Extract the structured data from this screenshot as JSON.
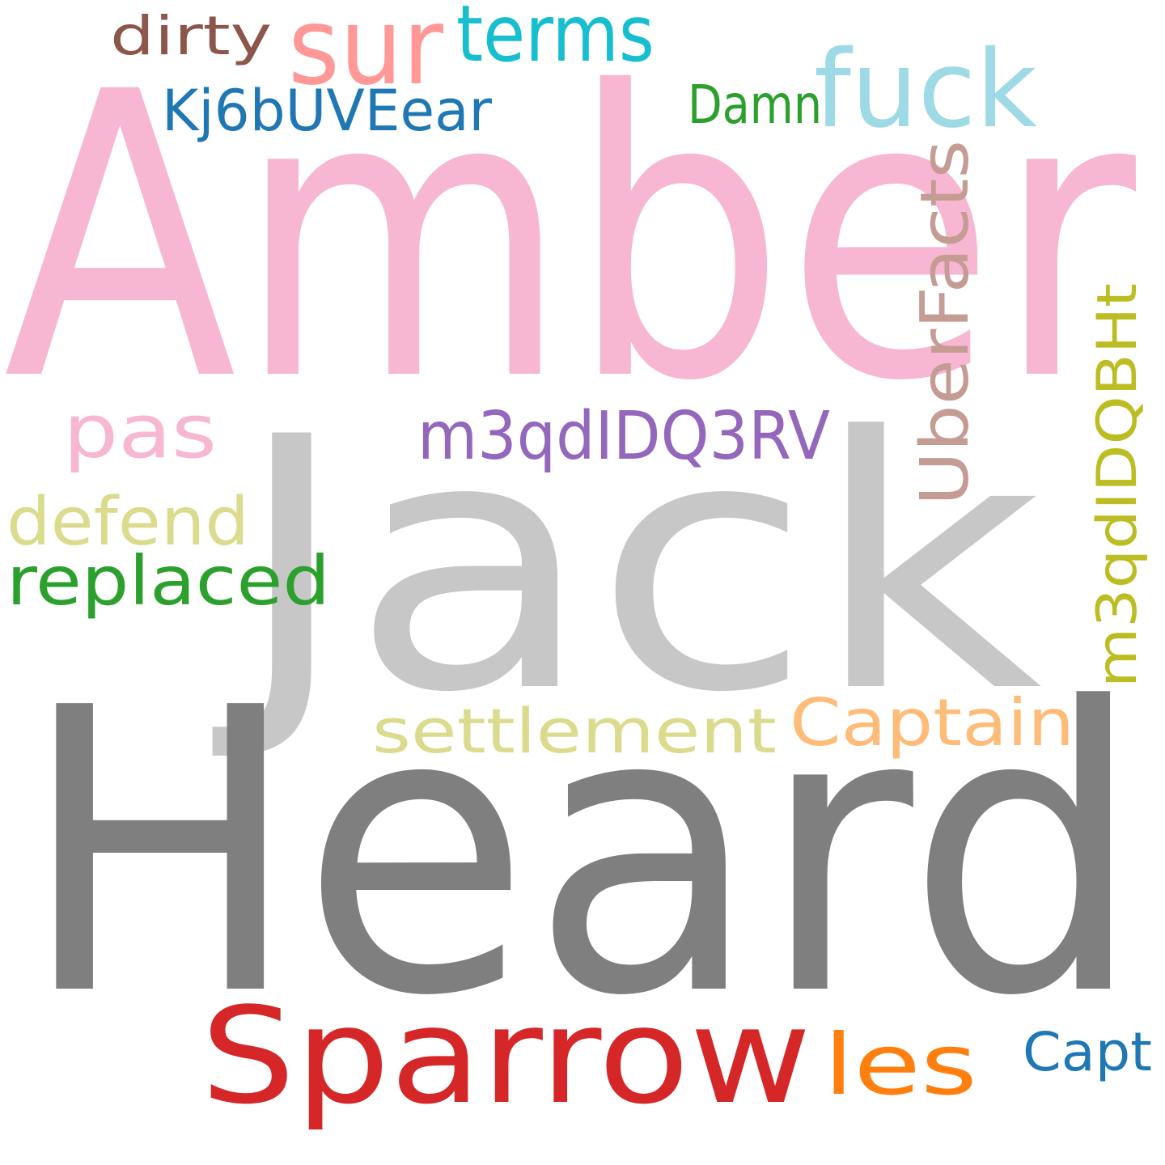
{
  "words": [
    {
      "text": "Amber",
      "color": "#f7b6d2"
    },
    {
      "text": "Jack",
      "color": "#c7c7c7"
    },
    {
      "text": "Heard",
      "color": "#7f7f7f"
    },
    {
      "text": "Sparrow",
      "color": "#d62728"
    },
    {
      "text": "sur",
      "color": "#ff9896"
    },
    {
      "text": "terms",
      "color": "#17becf"
    },
    {
      "text": "dirty",
      "color": "#8c564b"
    },
    {
      "text": "fuck",
      "color": "#9edae5"
    },
    {
      "text": "Kj6bUVEear",
      "color": "#1f77b4"
    },
    {
      "text": "Damn",
      "color": "#2ca02c"
    },
    {
      "text": "UberFacts",
      "color": "#c49c94"
    },
    {
      "text": "m3qdIDQBHt",
      "color": "#bcbd22"
    },
    {
      "text": "pas",
      "color": "#f7b6d2"
    },
    {
      "text": "m3qdIDQ3RV",
      "color": "#9467bd"
    },
    {
      "text": "defend",
      "color": "#dbdb8d"
    },
    {
      "text": "replaced",
      "color": "#2ca02c"
    },
    {
      "text": "settlement",
      "color": "#dbdb8d"
    },
    {
      "text": "Captain",
      "color": "#ffbb78"
    },
    {
      "text": "les",
      "color": "#ff7f0e"
    },
    {
      "text": "Capt",
      "color": "#1f77b4"
    }
  ]
}
